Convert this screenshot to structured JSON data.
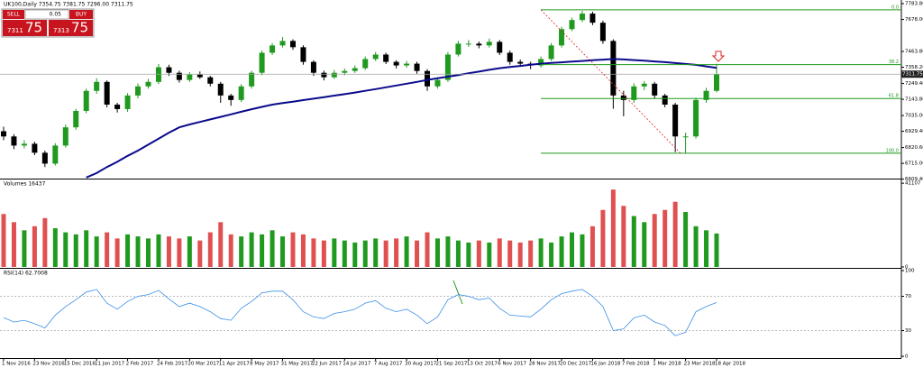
{
  "header": {
    "symbol_line": "UK100,Daily  7354.75 7381.75 7296.00 7311.75"
  },
  "trade_panel": {
    "sell": "SELL",
    "buy": "BUY",
    "lot": "0.05",
    "sell_big": "7311",
    "sell_small": "75",
    "buy_big": "7313",
    "buy_small": "75"
  },
  "chart_data": [
    {
      "type": "candlestick",
      "categories": [
        "1 Nov 2016",
        null,
        null,
        "23 Nov 2016",
        null,
        null,
        "15 Dec 2016",
        null,
        null,
        "11 Jan 2017",
        null,
        null,
        "2 Feb 2017",
        null,
        null,
        "24 Feb 2017",
        null,
        null,
        "20 Mar 2017",
        null,
        null,
        "11 Apr 2017",
        null,
        null,
        "8 May 2017",
        null,
        null,
        "31 May 2017",
        null,
        null,
        "22 Jun 2017",
        null,
        null,
        "14 Jul 2017",
        null,
        null,
        "7 Aug 2017",
        null,
        null,
        "30 Aug 2017",
        null,
        null,
        "21 Sep 2017",
        null,
        null,
        "13 Oct 2017",
        null,
        null,
        "6 Nov 2017",
        null,
        null,
        "28 Nov 2017",
        null,
        null,
        "20 Dec 2017",
        null,
        null,
        "16 Jan 2018",
        null,
        null,
        "7 Feb 2018",
        null,
        null,
        "1 Mar 2018",
        null,
        null,
        "23 Mar 2018",
        null,
        null,
        "18 Apr 2018"
      ],
      "open": [
        6930,
        6895,
        6834,
        6846,
        6786,
        6713,
        6834,
        6956,
        7066,
        7200,
        7260,
        7108,
        7078,
        7169,
        7230,
        7260,
        7358,
        7321,
        7273,
        7309,
        7291,
        7248,
        7169,
        7139,
        7230,
        7321,
        7455,
        7504,
        7534,
        7492,
        7394,
        7321,
        7291,
        7321,
        7333,
        7352,
        7413,
        7443,
        7394,
        7370,
        7382,
        7333,
        7230,
        7273,
        7443,
        7516,
        7516,
        7504,
        7528,
        7455,
        7394,
        7382,
        7370,
        7413,
        7504,
        7613,
        7674,
        7717,
        7656,
        7534,
        7169,
        7139,
        7230,
        7248,
        7169,
        7108,
        6895,
        6895,
        7139,
        7200
      ],
      "high": [
        6960,
        6910,
        6870,
        6860,
        6800,
        6850,
        6975,
        7080,
        7215,
        7285,
        7270,
        7120,
        7185,
        7250,
        7280,
        7380,
        7375,
        7335,
        7325,
        7330,
        7300,
        7260,
        7180,
        7245,
        7335,
        7470,
        7520,
        7560,
        7545,
        7505,
        7405,
        7335,
        7340,
        7350,
        7370,
        7430,
        7460,
        7455,
        7405,
        7400,
        7395,
        7345,
        7290,
        7460,
        7535,
        7540,
        7530,
        7550,
        7540,
        7470,
        7410,
        7395,
        7430,
        7520,
        7630,
        7690,
        7735,
        7730,
        7670,
        7545,
        7200,
        7250,
        7265,
        7260,
        7180,
        7120,
        6920,
        7155,
        7220,
        7382
      ],
      "low": [
        6870,
        6810,
        6815,
        6770,
        6690,
        6700,
        6820,
        6940,
        7050,
        7180,
        7090,
        7055,
        7060,
        7150,
        7215,
        7245,
        7300,
        7255,
        7260,
        7280,
        7230,
        7120,
        7100,
        7125,
        7215,
        7305,
        7440,
        7490,
        7475,
        7375,
        7300,
        7270,
        7280,
        7305,
        7320,
        7340,
        7400,
        7380,
        7350,
        7355,
        7315,
        7200,
        7215,
        7260,
        7430,
        7495,
        7485,
        7490,
        7440,
        7375,
        7365,
        7345,
        7355,
        7400,
        7490,
        7600,
        7660,
        7640,
        7515,
        7080,
        7030,
        7120,
        7205,
        7150,
        7090,
        6790,
        6780,
        6880,
        7120,
        7190
      ],
      "close": [
        6895,
        6834,
        6846,
        6786,
        6713,
        6834,
        6956,
        7066,
        7200,
        7260,
        7108,
        7078,
        7169,
        7230,
        7260,
        7358,
        7321,
        7273,
        7309,
        7291,
        7248,
        7169,
        7139,
        7230,
        7321,
        7455,
        7504,
        7534,
        7492,
        7394,
        7321,
        7291,
        7321,
        7333,
        7352,
        7413,
        7443,
        7394,
        7370,
        7382,
        7333,
        7230,
        7273,
        7443,
        7516,
        7516,
        7504,
        7528,
        7455,
        7394,
        7382,
        7370,
        7413,
        7504,
        7613,
        7674,
        7717,
        7656,
        7534,
        7169,
        7139,
        7230,
        7248,
        7169,
        7108,
        6895,
        6895,
        7139,
        7200,
        7311.75
      ],
      "up_color": "#1f9a1f",
      "down_color": "#000000",
      "series": [
        {
          "type": "line",
          "color": "#0a0a8c",
          "values": [
            null,
            null,
            null,
            null,
            null,
            null,
            null,
            null,
            6620,
            6650,
            6690,
            6725,
            6765,
            6800,
            6840,
            6880,
            6920,
            6956,
            6975,
            6992,
            7009,
            7026,
            7043,
            7060,
            7077,
            7093,
            7108,
            7118,
            7128,
            7138,
            7148,
            7158,
            7168,
            7178,
            7189,
            7200,
            7212,
            7224,
            7236,
            7248,
            7260,
            7273,
            7284,
            7295,
            7306,
            7318,
            7329,
            7341,
            7352,
            7360,
            7367,
            7375,
            7382,
            7387,
            7391,
            7396,
            7400,
            7405,
            7409,
            7413,
            7410,
            7406,
            7402,
            7397,
            7392,
            7386,
            7380,
            7374,
            7364,
            7354
          ]
        }
      ],
      "ylim": [
        6613,
        7808
      ],
      "yticks": [
        {
          "value": 7783.8,
          "label": "7783.80"
        },
        {
          "value": 7678,
          "label": "7678.00"
        },
        {
          "value": 7463.8,
          "label": "7463.80"
        },
        {
          "value": 7358.2,
          "label": "7358.20"
        },
        {
          "value": 7249.4,
          "label": "7249.40"
        },
        {
          "value": 7143.8,
          "label": "7143.80"
        },
        {
          "value": 7035,
          "label": "7035.00"
        },
        {
          "value": 6929.4,
          "label": "6929.40"
        },
        {
          "value": 6820.6,
          "label": "6820.60"
        },
        {
          "value": 6715,
          "label": "6715.00"
        },
        {
          "value": 6609.4,
          "label": "6609.40"
        }
      ],
      "price_line": {
        "value": 7311.75,
        "label": "7311.75"
      },
      "fibonacci": {
        "color": "#1f9a1f",
        "levels": [
          {
            "value": 7742,
            "label": "0.0"
          },
          {
            "value": 7376,
            "label": "38.2"
          },
          {
            "value": 7149,
            "label": "61.8"
          },
          {
            "value": 6783,
            "label": "100.0"
          }
        ]
      }
    },
    {
      "type": "volume",
      "title": "Volumes 16437",
      "up_color": "#1f9a1f",
      "down_color": "#e05050",
      "values": [
        26000,
        22000,
        18000,
        20000,
        24000,
        19000,
        17000,
        16000,
        18000,
        15000,
        17000,
        14000,
        16000,
        15000,
        14000,
        16000,
        15000,
        14000,
        15000,
        13000,
        17000,
        22000,
        16000,
        15000,
        17000,
        16000,
        18000,
        15000,
        17000,
        16000,
        14000,
        13000,
        14000,
        13000,
        12000,
        13000,
        14000,
        13000,
        14000,
        15000,
        13000,
        17000,
        14000,
        15000,
        13000,
        12000,
        13000,
        12000,
        14000,
        13000,
        12000,
        13000,
        14000,
        12000,
        15000,
        17000,
        16000,
        20000,
        28000,
        38000,
        30000,
        25000,
        22000,
        26000,
        28000,
        32000,
        27000,
        20000,
        18000,
        16437
      ],
      "ylim": [
        0,
        42500
      ],
      "yticks": [
        41107,
        0
      ]
    },
    {
      "type": "line",
      "title": "RSI(14) 62.7008",
      "color": "#3a8ee6",
      "values": [
        45,
        40,
        42,
        38,
        33,
        48,
        58,
        66,
        75,
        78,
        62,
        55,
        64,
        70,
        72,
        77,
        67,
        58,
        62,
        58,
        52,
        44,
        42,
        56,
        64,
        74,
        76,
        76,
        66,
        52,
        46,
        44,
        50,
        52,
        55,
        62,
        65,
        56,
        52,
        55,
        48,
        38,
        46,
        66,
        72,
        70,
        66,
        68,
        56,
        48,
        47,
        46,
        55,
        66,
        73,
        76,
        78,
        70,
        58,
        30,
        32,
        45,
        48,
        40,
        36,
        24,
        28,
        52,
        58,
        62.7
      ],
      "ylim": [
        0,
        100
      ],
      "yticks": [
        100,
        70,
        30,
        0
      ],
      "levels": [
        70,
        30
      ]
    }
  ]
}
